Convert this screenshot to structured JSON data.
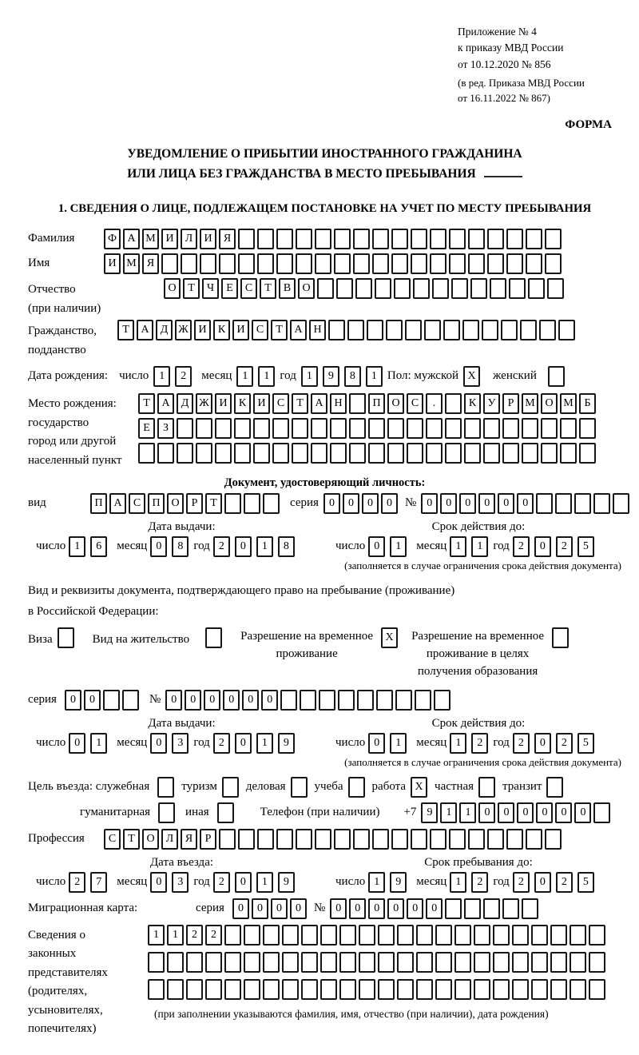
{
  "header": {
    "appendix_lines": [
      "Приложение № 4",
      "к приказу МВД России",
      "от 10.12.2020 № 856"
    ],
    "appendix_edit_lines": [
      "(в ред. Приказа МВД России",
      "от 16.11.2022 № 867)"
    ],
    "forma": "ФОРМА"
  },
  "title": {
    "line1": "УВЕДОМЛЕНИЕ О ПРИБЫТИИ ИНОСТРАННОГО ГРАЖДАНИНА",
    "line2": "ИЛИ ЛИЦА БЕЗ ГРАЖДАНСТВА В МЕСТО ПРЕБЫВАНИЯ"
  },
  "section1": {
    "heading": "1. СВЕДЕНИЯ О ЛИЦЕ, ПОДЛЕЖАЩЕМ ПОСТАНОВКЕ НА УЧЕТ ПО МЕСТУ ПРЕБЫВАНИЯ",
    "surname": {
      "label": "Фамилия",
      "cells": {
        "text": "ФАМИЛИЯ",
        "n": 24
      }
    },
    "firstname": {
      "label": "Имя",
      "cells": {
        "text": "ИМЯ",
        "n": 24
      }
    },
    "patronymic": {
      "label": "Отчество",
      "label2": "(при наличии)",
      "cells": {
        "text": "ОТЧЕСТВО",
        "n": 21
      }
    },
    "citizenship": {
      "label": "Гражданство,",
      "label2": "подданство",
      "cells": {
        "text": "ТАДЖИКИСТАН",
        "n": 24
      }
    },
    "birthdate": {
      "label": "Дата рождения:",
      "day_label": "число",
      "day": {
        "text": "12",
        "n": 2
      },
      "month_label": "месяц",
      "month": {
        "text": "11",
        "n": 2
      },
      "year_label": "год",
      "year": {
        "text": "1981",
        "n": 4
      },
      "sex_label": "Пол: мужской",
      "male": {
        "text": "X",
        "n": 1
      },
      "female_label": "женский",
      "female": {
        "text": "",
        "n": 1
      }
    },
    "birthplace": {
      "label_lines": [
        "Место рождения:",
        "государство",
        "город или другой",
        "населенный пункт"
      ],
      "row1": {
        "text": "ТАДЖИКИСТАН ПОС. КУРМОМБ",
        "n": 24
      },
      "row2": {
        "text": "ЕЗ",
        "n": 24
      },
      "row3": {
        "text": "",
        "n": 24
      }
    },
    "identity_doc": {
      "heading": "Документ, удостоверяющий личность:",
      "type_label": "вид",
      "type": {
        "text": "ПАСПОРТ",
        "n": 10
      },
      "series_label": "серия",
      "series": {
        "text": "0000",
        "n": 4
      },
      "number_label": "№",
      "number": {
        "text": "000000",
        "n": 11
      },
      "issue_label": "Дата выдачи:",
      "issue": {
        "day_label": "число",
        "day": {
          "text": "16",
          "n": 2
        },
        "month_label": "месяц",
        "month": {
          "text": "08",
          "n": 2
        },
        "year_label": "год",
        "year": {
          "text": "2018",
          "n": 4
        }
      },
      "valid_label": "Срок действия до:",
      "valid": {
        "day_label": "число",
        "day": {
          "text": "01",
          "n": 2
        },
        "month_label": "месяц",
        "month": {
          "text": "11",
          "n": 2
        },
        "year_label": "год",
        "year": {
          "text": "2025",
          "n": 4
        }
      },
      "note": "(заполняется в случае ограничения срока действия документа)"
    },
    "residence_doc": {
      "intro1": "Вид и реквизиты документа, подтверждающего право на пребывание (проживание)",
      "intro2": "в Российской Федерации:",
      "visa_label": "Виза",
      "visa": {
        "text": "",
        "n": 1
      },
      "permit_label": "Вид на жительство",
      "permit": {
        "text": "",
        "n": 1
      },
      "temp_label1": "Разрешение на временное",
      "temp_label2": "проживание",
      "temp": {
        "text": "X",
        "n": 1
      },
      "edu_label1": "Разрешение на временное",
      "edu_label2": "проживание в целях",
      "edu_label3": "получения образования",
      "edu": {
        "text": "",
        "n": 1
      },
      "series_label": "серия",
      "series": {
        "text": "00",
        "n": 4
      },
      "number_label": "№",
      "number": {
        "text": "000000",
        "n": 15
      },
      "issue_label": "Дата выдачи:",
      "issue": {
        "day_label": "число",
        "day": {
          "text": "01",
          "n": 2
        },
        "month_label": "месяц",
        "month": {
          "text": "03",
          "n": 2
        },
        "year_label": "год",
        "year": {
          "text": "2019",
          "n": 4
        }
      },
      "valid_label": "Срок действия до:",
      "valid": {
        "day_label": "число",
        "day": {
          "text": "01",
          "n": 2
        },
        "month_label": "месяц",
        "month": {
          "text": "12",
          "n": 2
        },
        "year_label": "год",
        "year": {
          "text": "2025",
          "n": 4
        }
      },
      "note": "(заполняется в случае ограничения срока действия документа)"
    },
    "visit": {
      "purpose_label": "Цель въезда: служебная",
      "options": [
        {
          "label": "туризм",
          "box": {
            "text": "",
            "n": 1
          }
        },
        {
          "label": "деловая",
          "box": {
            "text": "",
            "n": 1
          }
        },
        {
          "label": "учеба",
          "box": {
            "text": "",
            "n": 1
          }
        },
        {
          "label": "работа",
          "box": {
            "text": "X",
            "n": 1
          }
        },
        {
          "label": "частная",
          "box": {
            "text": "",
            "n": 1
          }
        },
        {
          "label": "транзит",
          "box": {
            "text": "",
            "n": 1
          }
        }
      ],
      "first_box": {
        "text": "",
        "n": 1
      },
      "humanitarian_label": "гуманитарная",
      "humanitarian": {
        "text": "",
        "n": 1
      },
      "other_label": "иная",
      "other": {
        "text": "",
        "n": 1
      },
      "phone_label": "Телефон (при наличии)",
      "phone_prefix": "+7",
      "phone": {
        "text": "911000000",
        "n": 10
      }
    },
    "profession": {
      "label": "Профессия",
      "cells": {
        "text": "СТОЛЯР",
        "n": 24
      }
    },
    "travel": {
      "entry_label": "Дата въезда:",
      "entry": {
        "day_label": "число",
        "day": {
          "text": "27",
          "n": 2
        },
        "month_label": "месяц",
        "month": {
          "text": "03",
          "n": 2
        },
        "year_label": "год",
        "year": {
          "text": "2019",
          "n": 4
        }
      },
      "stay_label": "Срок пребывания до:",
      "stay": {
        "day_label": "число",
        "day": {
          "text": "19",
          "n": 2
        },
        "month_label": "месяц",
        "month": {
          "text": "12",
          "n": 2
        },
        "year_label": "год",
        "year": {
          "text": "2025",
          "n": 4
        }
      }
    },
    "migration_card": {
      "label": "Миграционная карта:",
      "series_label": "серия",
      "series": {
        "text": "0000",
        "n": 4
      },
      "number_label": "№",
      "number": {
        "text": "000000",
        "n": 11
      }
    },
    "legal_reps": {
      "label_lines": [
        "Сведения о",
        "законных",
        "представителях",
        "(родителях,",
        "усыновителях,",
        "попечителях)"
      ],
      "row1": {
        "text": "1122",
        "n": 24
      },
      "row2": {
        "text": "",
        "n": 24
      },
      "row3": {
        "text": "",
        "n": 24
      },
      "note": "(при заполнении указываются фамилия, имя, отчество (при наличии), дата рождения)"
    }
  }
}
